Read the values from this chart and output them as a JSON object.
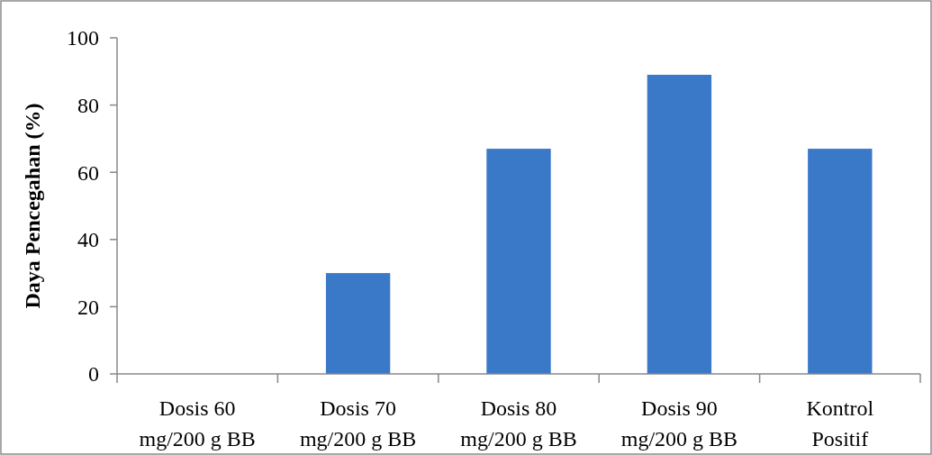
{
  "chart_data": {
    "type": "bar",
    "ylabel": "Daya Pencegahan (%)",
    "categories": [
      "Dosis 60\nmg/200 g BB",
      "Dosis 70\nmg/200 g BB",
      "Dosis 80\nmg/200 g BB",
      "Dosis 90\nmg/200 g BB",
      "Kontrol\nPositif"
    ],
    "values": [
      0,
      30,
      67,
      89,
      67
    ],
    "color": "#3a78c8",
    "ylim": [
      0,
      100
    ],
    "yticks": [
      0,
      20,
      40,
      60,
      80,
      100
    ],
    "grid": false
  }
}
